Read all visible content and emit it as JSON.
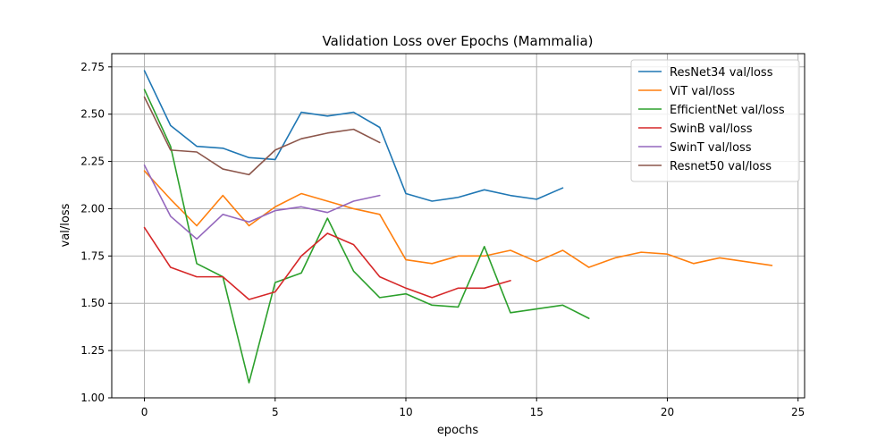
{
  "chart_data": {
    "type": "line",
    "title": "Validation Loss over Epochs (Mammalia)",
    "xlabel": "epochs",
    "ylabel": "val/loss",
    "xlim": [
      -1.25,
      25.25
    ],
    "ylim": [
      1.0,
      2.82
    ],
    "xticks": [
      0,
      5,
      10,
      15,
      20,
      25
    ],
    "yticks": [
      1.0,
      1.25,
      1.5,
      1.75,
      2.0,
      2.25,
      2.5,
      2.75
    ],
    "xtick_labels": [
      "0",
      "5",
      "10",
      "15",
      "20",
      "25"
    ],
    "ytick_labels": [
      "1.00",
      "1.25",
      "1.50",
      "1.75",
      "2.00",
      "2.25",
      "2.50",
      "2.75"
    ],
    "grid": true,
    "legend_position": "top-right",
    "series": [
      {
        "name": "ResNet34 val/loss",
        "color": "#1f77b4",
        "x": [
          0,
          1,
          2,
          3,
          4,
          5,
          6,
          7,
          8,
          9,
          10,
          11,
          12,
          13,
          14,
          15,
          16
        ],
        "values": [
          2.73,
          2.44,
          2.33,
          2.32,
          2.27,
          2.26,
          2.51,
          2.49,
          2.51,
          2.43,
          2.08,
          2.04,
          2.06,
          2.1,
          2.07,
          2.05,
          2.11
        ]
      },
      {
        "name": "ViT val/loss",
        "color": "#ff7f0e",
        "x": [
          0,
          1,
          2,
          3,
          4,
          5,
          6,
          7,
          8,
          9,
          10,
          11,
          12,
          13,
          14,
          15,
          16,
          17,
          18,
          19,
          20,
          21,
          22,
          23,
          24
        ],
        "values": [
          2.2,
          2.05,
          1.91,
          2.07,
          1.91,
          2.01,
          2.08,
          2.04,
          2.0,
          1.97,
          1.73,
          1.71,
          1.75,
          1.75,
          1.78,
          1.72,
          1.78,
          1.69,
          1.74,
          1.77,
          1.76,
          1.71,
          1.74,
          1.72,
          1.7
        ]
      },
      {
        "name": "EfficientNet val/loss",
        "color": "#2ca02c",
        "x": [
          0,
          1,
          2,
          3,
          4,
          5,
          6,
          7,
          8,
          9,
          10,
          11,
          12,
          13,
          14,
          15,
          16,
          17
        ],
        "values": [
          2.63,
          2.33,
          1.71,
          1.64,
          1.08,
          1.61,
          1.66,
          1.95,
          1.67,
          1.53,
          1.55,
          1.49,
          1.48,
          1.8,
          1.45,
          1.47,
          1.49,
          1.42
        ]
      },
      {
        "name": "SwinB val/loss",
        "color": "#d62728",
        "x": [
          0,
          1,
          2,
          3,
          4,
          5,
          6,
          7,
          8,
          9,
          10,
          11,
          12,
          13,
          14
        ],
        "values": [
          1.9,
          1.69,
          1.64,
          1.64,
          1.52,
          1.56,
          1.75,
          1.87,
          1.81,
          1.64,
          1.58,
          1.53,
          1.58,
          1.58,
          1.62
        ]
      },
      {
        "name": "SwinT val/loss",
        "color": "#9467bd",
        "x": [
          0,
          1,
          2,
          3,
          4,
          5,
          6,
          7,
          8,
          9
        ],
        "values": [
          2.23,
          1.96,
          1.84,
          1.97,
          1.93,
          1.99,
          2.01,
          1.98,
          2.04,
          2.07
        ]
      },
      {
        "name": "Resnet50 val/loss",
        "color": "#8c564b",
        "x": [
          0,
          1,
          2,
          3,
          4,
          5,
          6,
          7,
          8,
          9
        ],
        "values": [
          2.59,
          2.31,
          2.3,
          2.21,
          2.18,
          2.31,
          2.37,
          2.4,
          2.42,
          2.35
        ]
      }
    ]
  }
}
